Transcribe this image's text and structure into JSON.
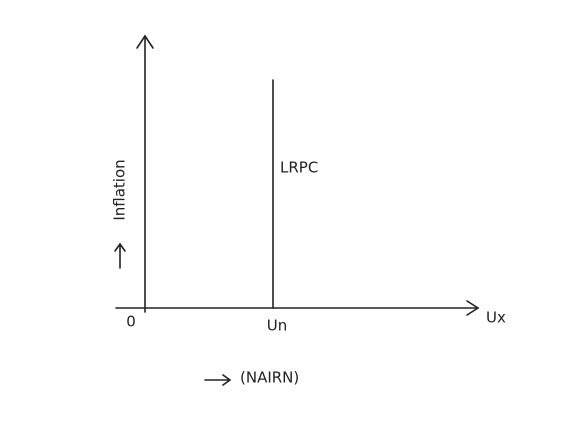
{
  "axes": {
    "y_label": "Inflation",
    "x_label": "(NAIRN)",
    "origin": "0",
    "x_end": "Ux"
  },
  "curve": {
    "label": "LRPC",
    "position_label": "Un"
  }
}
